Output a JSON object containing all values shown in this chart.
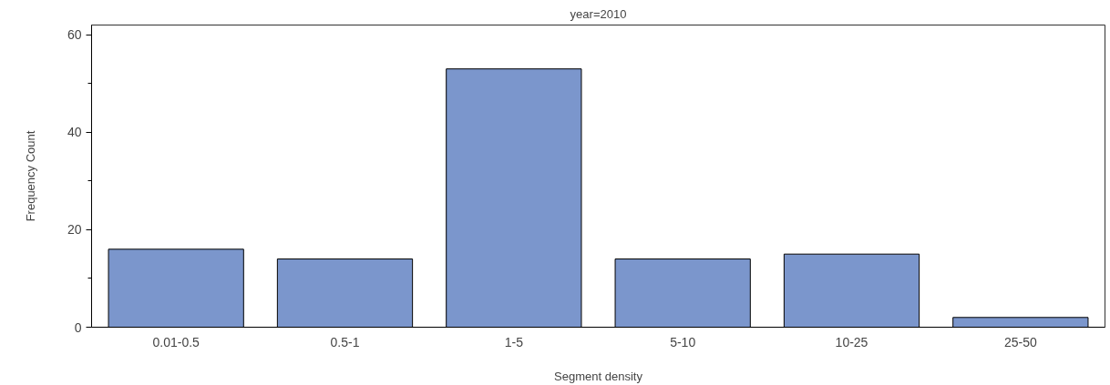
{
  "chart_data": {
    "type": "bar",
    "title": "year=2010",
    "xlabel": "Segment density",
    "ylabel": "Frequency Count",
    "categories": [
      "0.01-0.5",
      "0.5-1",
      "1-5",
      "5-10",
      "10-25",
      "25-50"
    ],
    "values": [
      16,
      14,
      53,
      14,
      15,
      2
    ],
    "color": "#7b96cc",
    "ylim": [
      0,
      62
    ],
    "yticks": [
      0,
      {
        "value": 10,
        "label": null
      },
      20,
      {
        "value": 30,
        "label": null
      },
      40,
      {
        "value": 50,
        "label": null
      },
      60
    ],
    "grid": false
  }
}
